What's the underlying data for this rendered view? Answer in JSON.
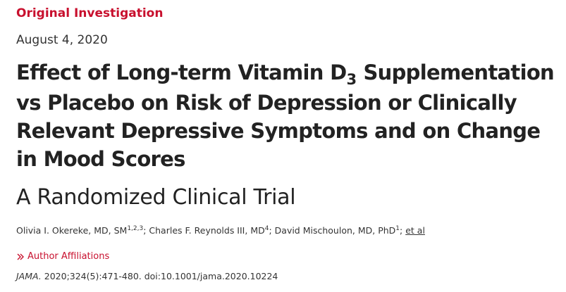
{
  "article": {
    "type": "Original Investigation",
    "date": "August 4, 2020",
    "title_pre": "Effect of Long-term Vitamin D",
    "title_sub": "3",
    "title_line1_post": " Supplementation",
    "title_rest": "vs Placebo on Risk of Depression or Clinically Relevant Depressive Symptoms and on Change in Mood Scores",
    "subtitle": "A Randomized Clinical Trial"
  },
  "authors": [
    {
      "name": "Olivia I. Okereke, MD, SM",
      "affil": "1,2,3",
      "sep": "; "
    },
    {
      "name": "Charles F. Reynolds III, MD",
      "affil": "4",
      "sep": "; "
    },
    {
      "name": "David Mischoulon, MD, PhD",
      "affil": "1",
      "sep": "; "
    }
  ],
  "authors_more": "et al",
  "affiliations_link": "Author Affiliations",
  "citation": {
    "journal": "JAMA.",
    "details": " 2020;324(5):471-480. doi:10.1001/jama.2020.10224"
  },
  "colors": {
    "accent": "#c8102e",
    "text": "#222222"
  }
}
